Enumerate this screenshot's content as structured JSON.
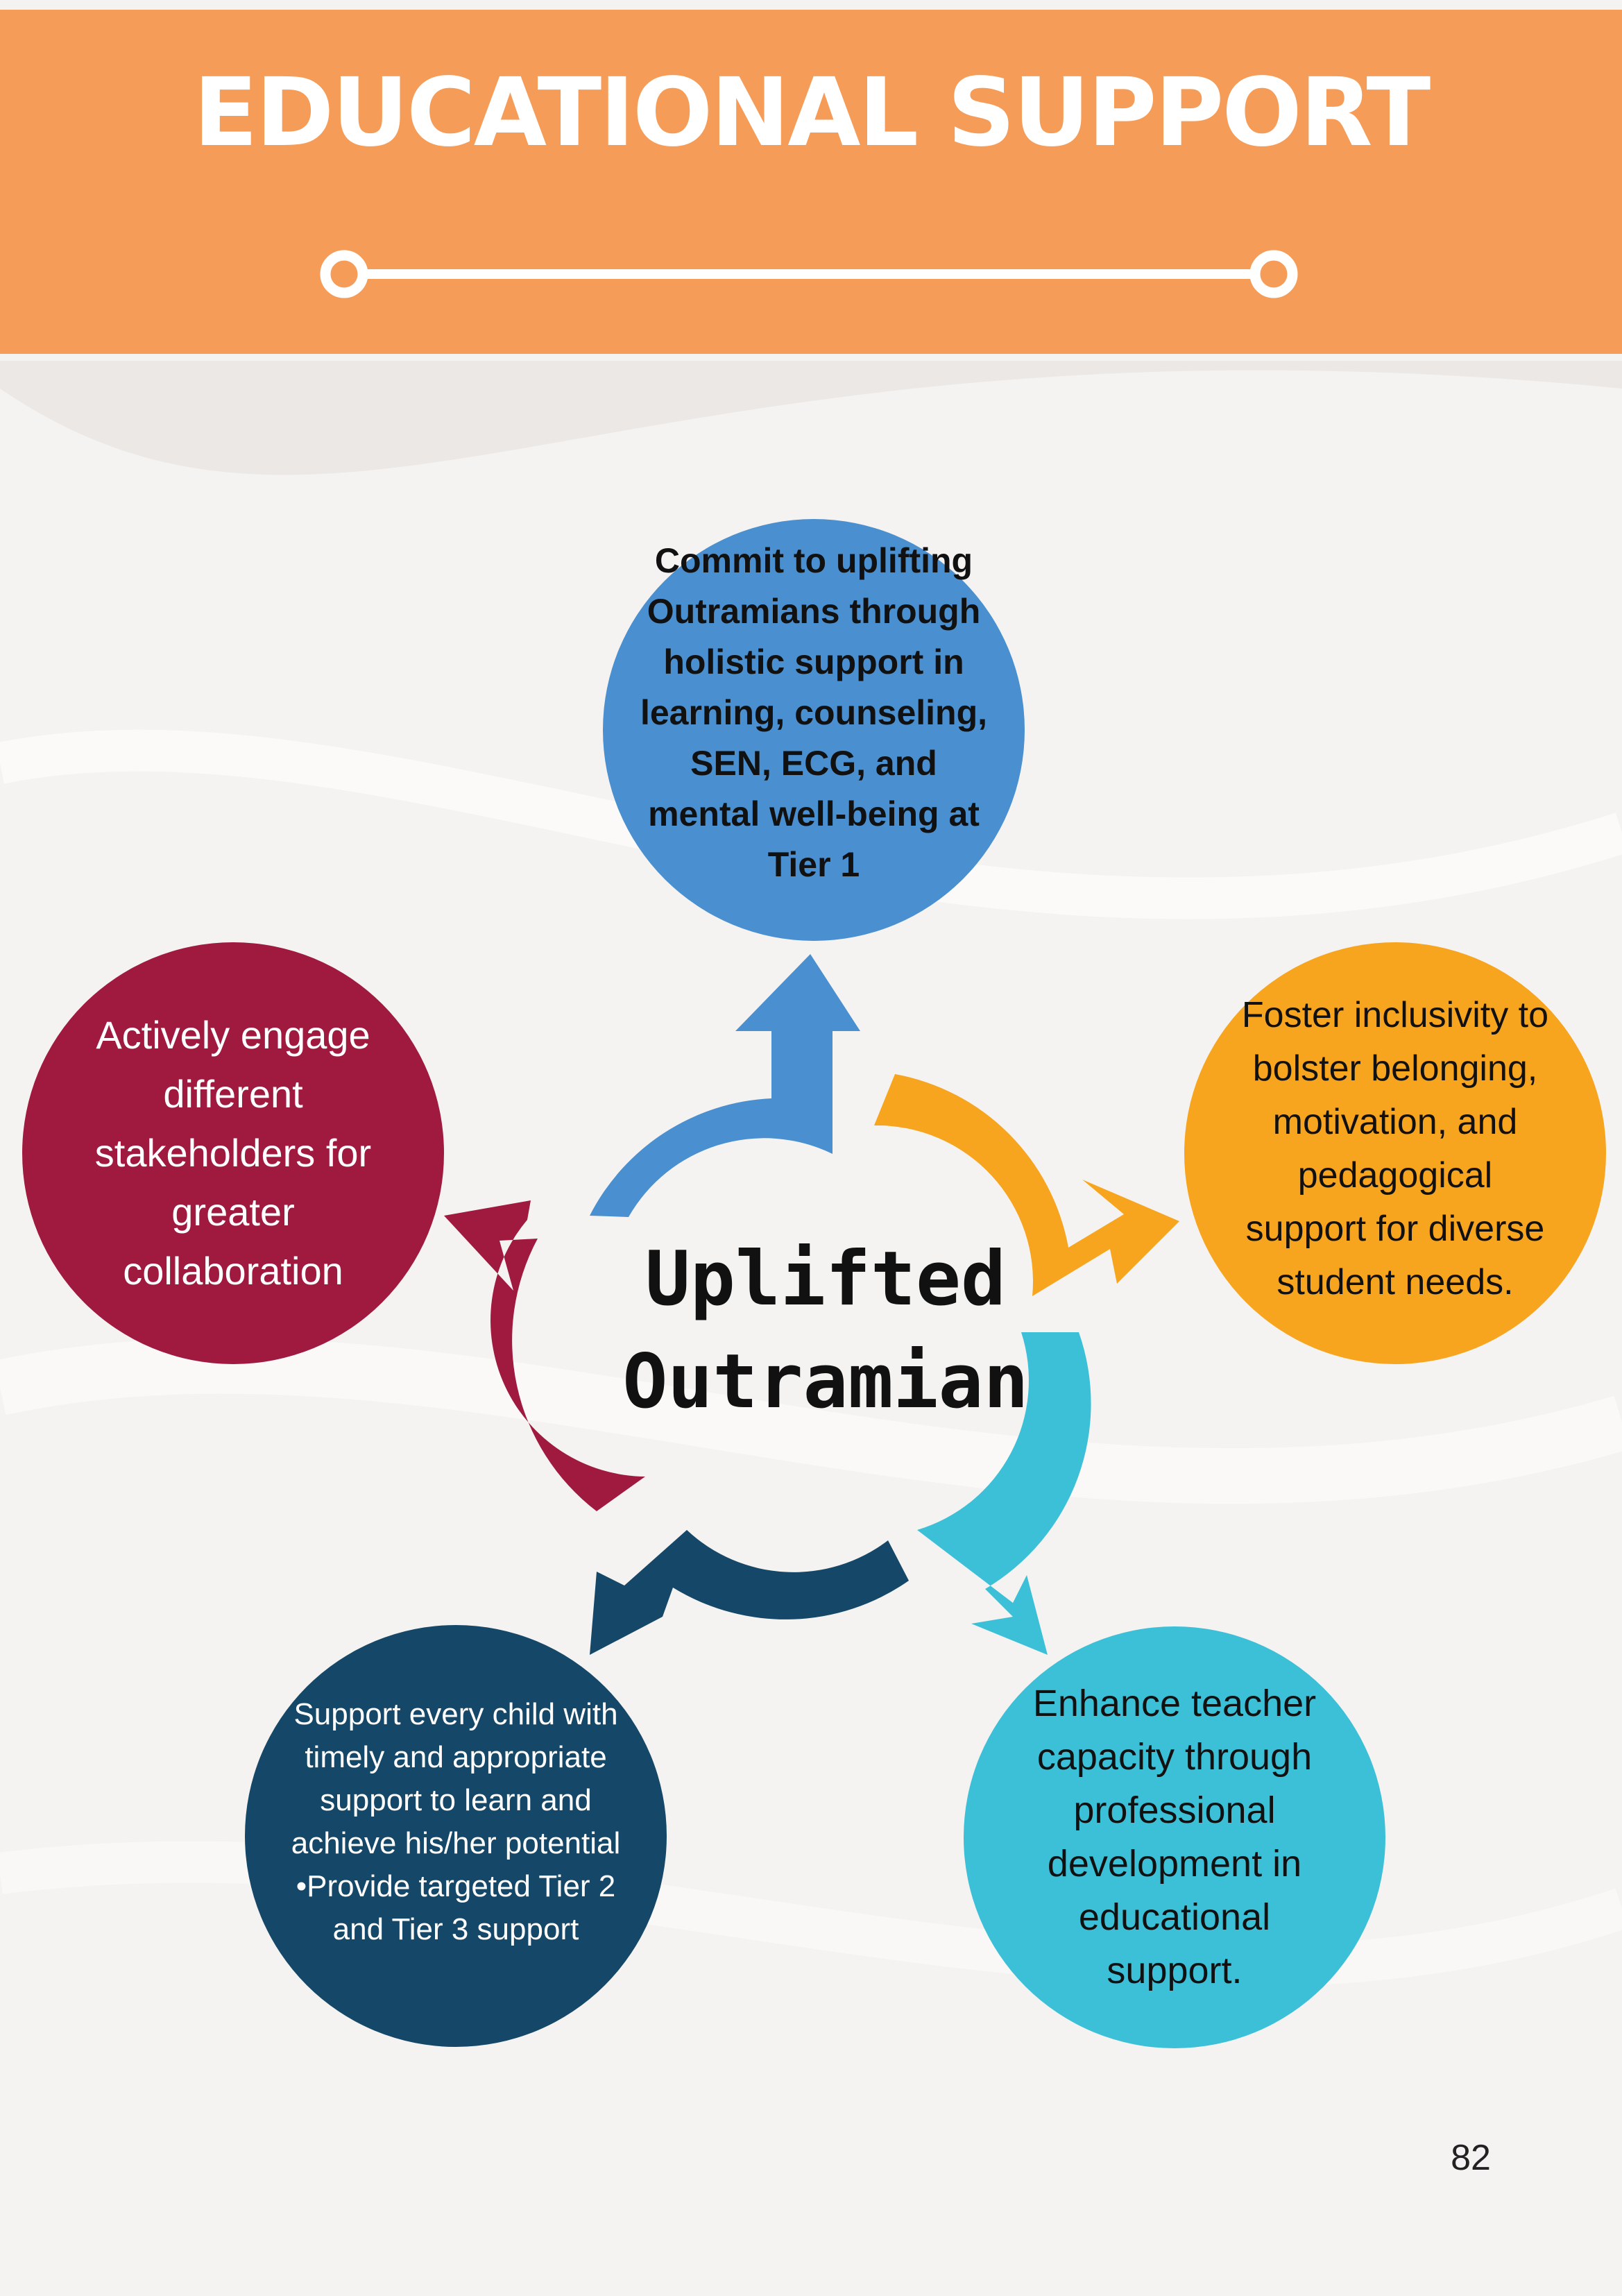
{
  "header": {
    "title": "EDUCATIONAL SUPPORT"
  },
  "diagram": {
    "center": "Uplifted\nOutramian",
    "items": [
      {
        "text": "Commit to uplifting\nOutramians through\nholistic support in\nlearning, counseling,\nSEN, ECG, and\nmental well-being at\nTier 1",
        "color": "#4a8fcf"
      },
      {
        "text": "Foster inclusivity to\nbolster belonging,\nmotivation, and\npedagogical\nsupport for diverse\nstudent needs.",
        "color": "#f7a41f"
      },
      {
        "text": "Enhance teacher\ncapacity through\nprofessional\ndevelopment in\neducational\nsupport.",
        "color": "#3cc0d8"
      },
      {
        "text": "Support every child with\ntimely and appropriate\nsupport to learn and\nachieve his/her potential\n•Provide targeted Tier 2\nand Tier 3 support",
        "color": "#154868"
      },
      {
        "text": "Actively engage\ndifferent\nstakeholders for\ngreater\ncollaboration",
        "color": "#a01a40"
      }
    ]
  },
  "page_number": "82",
  "colors": {
    "header": "#f59c58",
    "background": "#f5f3f1"
  }
}
